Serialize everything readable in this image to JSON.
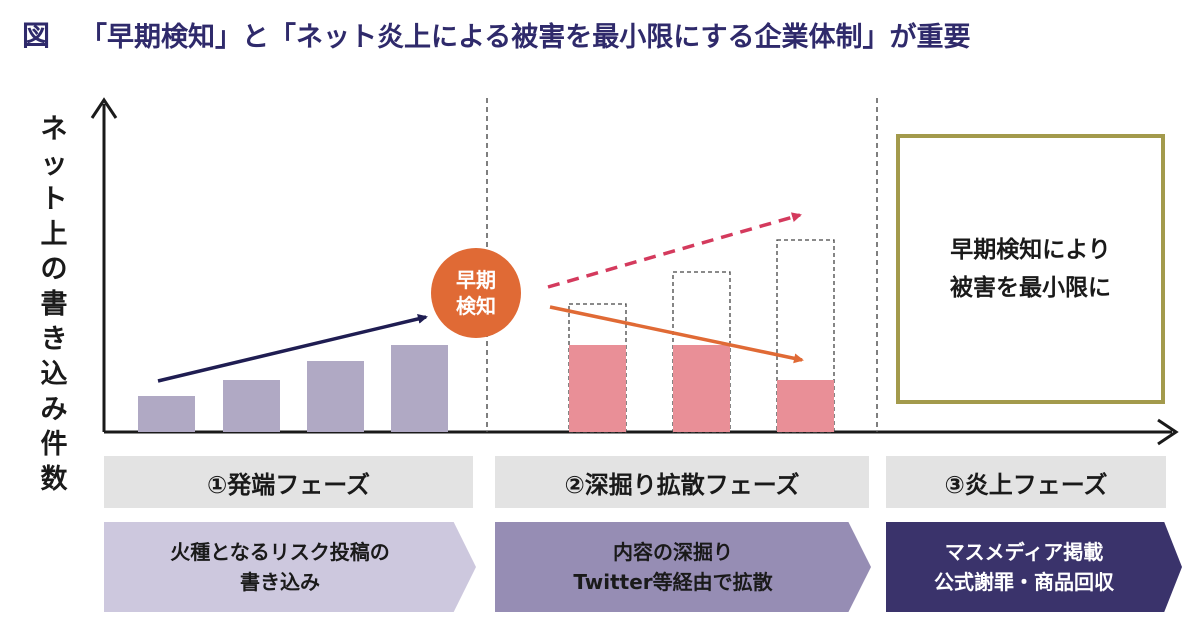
{
  "figure": {
    "label": "図",
    "title": "「早期検知」と「ネット炎上による被害を最小限にする企業体制」が重要"
  },
  "y_axis_label": [
    "ネ",
    "ッ",
    "ト",
    "上",
    "の",
    "書",
    "き",
    "込",
    "み",
    "件",
    "数"
  ],
  "early_detection": {
    "line1": "早期",
    "line2": "検知"
  },
  "result_box": {
    "line1": "早期検知により",
    "line2": "被害を最小限に"
  },
  "phases": [
    {
      "label": "①発端フェーズ",
      "desc": [
        "火種となるリスク投稿の",
        "書き込み"
      ]
    },
    {
      "label": "②深掘り拡散フェーズ",
      "desc": [
        "内容の深掘り",
        "Twitter等経由で拡散"
      ]
    },
    {
      "label": "③炎上フェーズ",
      "desc": [
        "マスメディア掲載",
        "公式謝罪・商品回収"
      ]
    }
  ],
  "colors": {
    "title": "#2f2a6b",
    "bar_phase1": "#b0a9c4",
    "bar_phase2": "#e98f97",
    "circle": "#e06a35",
    "arrow_trend": "#1f1d52",
    "arrow_undetected": "#d43a5d",
    "arrow_detected": "#e06a35",
    "result_border": "#a39a4c",
    "chevron1": "#cdc8de",
    "chevron2": "#968db4",
    "chevron3": "#3a336b"
  }
}
